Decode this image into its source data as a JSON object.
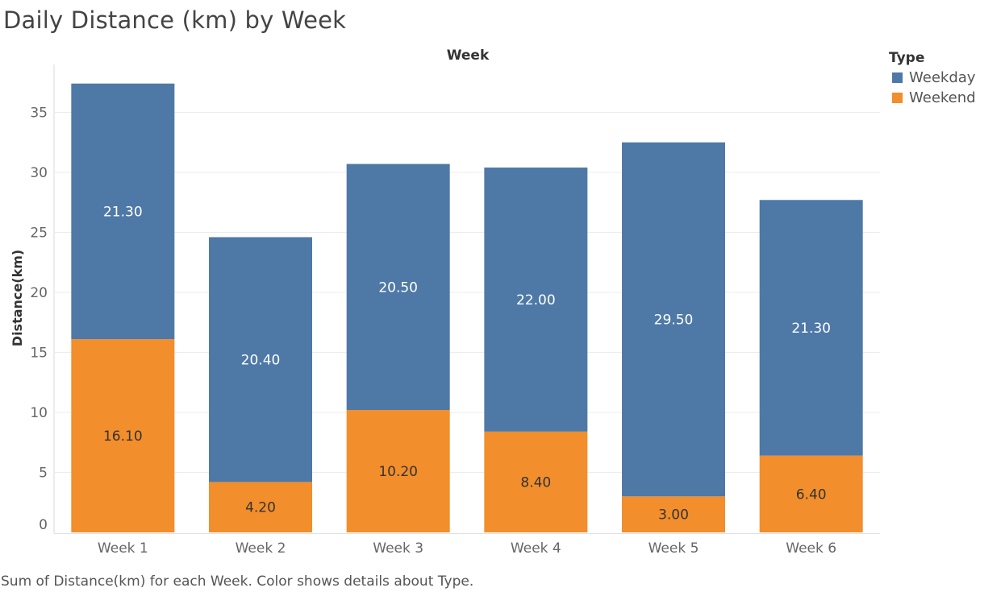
{
  "title": "Daily Distance (km) by Week",
  "caption": "Sum of Distance(km) for each Week.  Color shows details about Type.",
  "colors": {
    "weekday": "#4e79a7",
    "weekend": "#f28e2b",
    "label_on_weekday": "#ffffff",
    "label_on_weekend": "#333333",
    "gridline": "#ececec"
  },
  "chart_data": {
    "type": "bar",
    "stacked": true,
    "title": "Daily Distance (km) by Week",
    "column_header": "Week",
    "xlabel": "",
    "ylabel": "Distance(km)",
    "categories": [
      "Week 1",
      "Week 2",
      "Week 3",
      "Week 4",
      "Week 5",
      "Week 6"
    ],
    "series": [
      {
        "name": "Weekend",
        "values": [
          16.1,
          4.2,
          10.2,
          8.4,
          3.0,
          6.4
        ],
        "labels": [
          "16.10",
          "4.20",
          "10.20",
          "8.40",
          "3.00",
          "6.40"
        ]
      },
      {
        "name": "Weekday",
        "values": [
          21.3,
          20.4,
          20.5,
          22.0,
          29.5,
          21.3
        ],
        "labels": [
          "21.30",
          "20.40",
          "20.50",
          "22.00",
          "29.50",
          "21.30"
        ]
      }
    ],
    "yticks": [
      "0",
      "5",
      "10",
      "15",
      "20",
      "25",
      "30",
      "35"
    ],
    "ylim": [
      0,
      38.5
    ],
    "grid": true,
    "legend": {
      "title": "Type",
      "position": "top-right",
      "entries": [
        "Weekday",
        "Weekend"
      ]
    }
  }
}
